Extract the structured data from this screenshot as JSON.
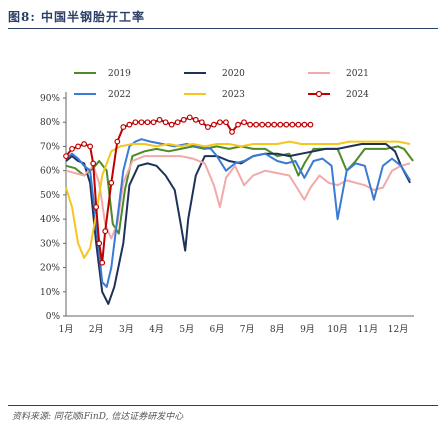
{
  "figure": {
    "title": "图8: 中国半钢胎开工率",
    "source": "资料来源: 同花顺iFinD, 信达证券研发中心"
  },
  "chart_data": {
    "type": "line",
    "title": "",
    "xlabel": "",
    "ylabel": "",
    "x_labels": [
      "1月",
      "2月",
      "3月",
      "4月",
      "5月",
      "6月",
      "7月",
      "8月",
      "9月",
      "10月",
      "11月",
      "12月"
    ],
    "x_range": [
      1,
      12
    ],
    "ylim": [
      0,
      90
    ],
    "y_ticks": [
      "0%",
      "10%",
      "20%",
      "30%",
      "40%",
      "50%",
      "60%",
      "70%",
      "80%",
      "90%"
    ],
    "grid": false,
    "legend_placement": "top",
    "series": [
      {
        "name": "2019",
        "color": "#4e8a26",
        "points": [
          [
            1.0,
            62
          ],
          [
            1.3,
            61
          ],
          [
            1.6,
            58
          ],
          [
            1.9,
            61
          ],
          [
            2.1,
            64
          ],
          [
            2.35,
            60
          ],
          [
            2.55,
            38
          ],
          [
            2.75,
            34
          ],
          [
            2.95,
            52
          ],
          [
            3.2,
            66
          ],
          [
            3.6,
            68
          ],
          [
            4.0,
            69
          ],
          [
            4.4,
            68
          ],
          [
            4.8,
            69
          ],
          [
            5.2,
            70
          ],
          [
            5.6,
            69
          ],
          [
            6.0,
            70
          ],
          [
            6.4,
            69
          ],
          [
            6.8,
            70
          ],
          [
            7.2,
            69
          ],
          [
            7.6,
            69
          ],
          [
            8.0,
            66
          ],
          [
            8.4,
            67
          ],
          [
            8.7,
            58
          ],
          [
            8.9,
            63
          ],
          [
            9.2,
            69
          ],
          [
            9.6,
            69
          ],
          [
            10.0,
            69
          ],
          [
            10.3,
            60
          ],
          [
            10.6,
            64
          ],
          [
            10.9,
            69
          ],
          [
            11.2,
            69
          ],
          [
            11.6,
            69
          ],
          [
            12.0,
            70
          ],
          [
            12.2,
            69
          ],
          [
            12.5,
            64
          ]
        ]
      },
      {
        "name": "2020",
        "color": "#1d3159",
        "points": [
          [
            1.0,
            64
          ],
          [
            1.2,
            66
          ],
          [
            1.4,
            64
          ],
          [
            1.6,
            63
          ],
          [
            1.8,
            55
          ],
          [
            2.0,
            30
          ],
          [
            2.2,
            10
          ],
          [
            2.4,
            5
          ],
          [
            2.6,
            12
          ],
          [
            2.9,
            30
          ],
          [
            3.1,
            54
          ],
          [
            3.4,
            62
          ],
          [
            3.7,
            63
          ],
          [
            4.0,
            62
          ],
          [
            4.3,
            58
          ],
          [
            4.6,
            52
          ],
          [
            4.8,
            38
          ],
          [
            4.95,
            27
          ],
          [
            5.05,
            40
          ],
          [
            5.3,
            58
          ],
          [
            5.6,
            66
          ],
          [
            6.0,
            66
          ],
          [
            6.4,
            64
          ],
          [
            6.8,
            63
          ],
          [
            7.2,
            66
          ],
          [
            7.6,
            67
          ],
          [
            8.0,
            67
          ],
          [
            8.4,
            66
          ],
          [
            8.8,
            67
          ],
          [
            9.2,
            68
          ],
          [
            9.6,
            69
          ],
          [
            10.0,
            69
          ],
          [
            10.4,
            70
          ],
          [
            10.8,
            71
          ],
          [
            11.2,
            71
          ],
          [
            11.6,
            71
          ],
          [
            11.9,
            68
          ],
          [
            12.1,
            62
          ],
          [
            12.4,
            55
          ]
        ]
      },
      {
        "name": "2021",
        "color": "#f2a9a9",
        "points": [
          [
            1.0,
            60
          ],
          [
            1.3,
            59
          ],
          [
            1.6,
            58
          ],
          [
            1.9,
            62
          ],
          [
            2.1,
            55
          ],
          [
            2.3,
            38
          ],
          [
            2.5,
            32
          ],
          [
            2.7,
            38
          ],
          [
            2.9,
            55
          ],
          [
            3.2,
            64
          ],
          [
            3.6,
            66
          ],
          [
            4.0,
            66
          ],
          [
            4.4,
            66
          ],
          [
            4.8,
            66
          ],
          [
            5.2,
            65
          ],
          [
            5.6,
            63
          ],
          [
            5.9,
            54
          ],
          [
            6.1,
            45
          ],
          [
            6.3,
            57
          ],
          [
            6.6,
            62
          ],
          [
            6.9,
            54
          ],
          [
            7.2,
            58
          ],
          [
            7.6,
            60
          ],
          [
            8.0,
            59
          ],
          [
            8.4,
            58
          ],
          [
            8.7,
            52
          ],
          [
            8.9,
            48
          ],
          [
            9.1,
            53
          ],
          [
            9.4,
            58
          ],
          [
            9.7,
            55
          ],
          [
            10.0,
            54
          ],
          [
            10.3,
            56
          ],
          [
            10.6,
            55
          ],
          [
            10.9,
            54
          ],
          [
            11.2,
            52
          ],
          [
            11.5,
            53
          ],
          [
            11.8,
            60
          ],
          [
            12.1,
            62
          ],
          [
            12.4,
            63
          ]
        ]
      },
      {
        "name": "2022",
        "color": "#3a7bd5",
        "points": [
          [
            1.0,
            65
          ],
          [
            1.2,
            67
          ],
          [
            1.4,
            65
          ],
          [
            1.6,
            62
          ],
          [
            1.8,
            60
          ],
          [
            2.0,
            38
          ],
          [
            2.2,
            14
          ],
          [
            2.35,
            12
          ],
          [
            2.5,
            20
          ],
          [
            2.7,
            40
          ],
          [
            2.9,
            60
          ],
          [
            3.1,
            70
          ],
          [
            3.3,
            72
          ],
          [
            3.5,
            73
          ],
          [
            3.8,
            72
          ],
          [
            4.2,
            71
          ],
          [
            4.6,
            70
          ],
          [
            5.0,
            71
          ],
          [
            5.4,
            70
          ],
          [
            5.8,
            69
          ],
          [
            6.0,
            66
          ],
          [
            6.3,
            60
          ],
          [
            6.6,
            63
          ],
          [
            6.9,
            64
          ],
          [
            7.2,
            66
          ],
          [
            7.6,
            67
          ],
          [
            8.0,
            64
          ],
          [
            8.3,
            63
          ],
          [
            8.6,
            64
          ],
          [
            8.9,
            57
          ],
          [
            9.2,
            64
          ],
          [
            9.5,
            65
          ],
          [
            9.8,
            62
          ],
          [
            10.0,
            40
          ],
          [
            10.3,
            60
          ],
          [
            10.6,
            63
          ],
          [
            10.9,
            62
          ],
          [
            11.2,
            48
          ],
          [
            11.5,
            62
          ],
          [
            11.8,
            65
          ],
          [
            12.1,
            62
          ],
          [
            12.4,
            56
          ]
        ]
      },
      {
        "name": "2023",
        "color": "#f5c61e",
        "points": [
          [
            1.0,
            53
          ],
          [
            1.2,
            45
          ],
          [
            1.4,
            30
          ],
          [
            1.6,
            24
          ],
          [
            1.8,
            28
          ],
          [
            2.0,
            42
          ],
          [
            2.2,
            58
          ],
          [
            2.5,
            68
          ],
          [
            2.8,
            70
          ],
          [
            3.2,
            71
          ],
          [
            3.6,
            71
          ],
          [
            4.0,
            70
          ],
          [
            4.4,
            71
          ],
          [
            4.8,
            70
          ],
          [
            5.2,
            71
          ],
          [
            5.6,
            70
          ],
          [
            6.0,
            71
          ],
          [
            6.4,
            71
          ],
          [
            6.8,
            70
          ],
          [
            7.2,
            71
          ],
          [
            7.6,
            71
          ],
          [
            8.0,
            71
          ],
          [
            8.4,
            72
          ],
          [
            8.8,
            71
          ],
          [
            9.2,
            71
          ],
          [
            9.6,
            71
          ],
          [
            10.0,
            71
          ],
          [
            10.4,
            72
          ],
          [
            10.8,
            72
          ],
          [
            11.2,
            72
          ],
          [
            11.6,
            72
          ],
          [
            12.0,
            72
          ],
          [
            12.4,
            71
          ]
        ]
      },
      {
        "name": "2024",
        "color": "#c00000",
        "markers": true,
        "points": [
          [
            1.0,
            66
          ],
          [
            1.2,
            69
          ],
          [
            1.4,
            70
          ],
          [
            1.6,
            71
          ],
          [
            1.8,
            70
          ],
          [
            1.9,
            63
          ],
          [
            2.0,
            45
          ],
          [
            2.1,
            30
          ],
          [
            2.2,
            22
          ],
          [
            2.3,
            35
          ],
          [
            2.5,
            55
          ],
          [
            2.7,
            72
          ],
          [
            2.9,
            78
          ],
          [
            3.1,
            79
          ],
          [
            3.3,
            80
          ],
          [
            3.5,
            80
          ],
          [
            3.7,
            80
          ],
          [
            3.9,
            80
          ],
          [
            4.1,
            81
          ],
          [
            4.3,
            80
          ],
          [
            4.5,
            79
          ],
          [
            4.7,
            80
          ],
          [
            4.9,
            81
          ],
          [
            5.1,
            82
          ],
          [
            5.3,
            81
          ],
          [
            5.5,
            80
          ],
          [
            5.7,
            78
          ],
          [
            5.9,
            79
          ],
          [
            6.1,
            80
          ],
          [
            6.3,
            80
          ],
          [
            6.5,
            76
          ],
          [
            6.7,
            79
          ],
          [
            6.9,
            80
          ],
          [
            7.1,
            79
          ],
          [
            7.3,
            79
          ],
          [
            7.5,
            79
          ],
          [
            7.7,
            79
          ],
          [
            7.9,
            79
          ],
          [
            8.1,
            79
          ],
          [
            8.3,
            79
          ],
          [
            8.5,
            79
          ],
          [
            8.7,
            79
          ],
          [
            8.9,
            79
          ],
          [
            9.1,
            79
          ]
        ]
      }
    ]
  }
}
